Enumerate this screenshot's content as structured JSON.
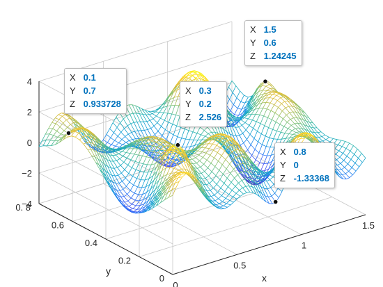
{
  "chart_data": {
    "type": "surface",
    "style": "mesh",
    "colormap": "parula",
    "x": {
      "label": "x",
      "range": [
        0,
        1.5
      ],
      "ticks": [
        "0",
        "0.5",
        "1",
        "1.5"
      ]
    },
    "y": {
      "label": "y",
      "range": [
        0,
        0.8
      ],
      "ticks": [
        "0",
        "0.2",
        "0.4",
        "0.6",
        "0. 8"
      ]
    },
    "z": {
      "label": "",
      "range": [
        -4,
        4
      ],
      "ticks": [
        "−4",
        "−2",
        "0",
        "2",
        "4"
      ]
    },
    "grid": true,
    "datatips": [
      {
        "X": "0.1",
        "Y": "0.7",
        "Z": "0.933728"
      },
      {
        "X": "0.3",
        "Y": "0.2",
        "Z": "2.526"
      },
      {
        "X": "1.5",
        "Y": "0.6",
        "Z": "1.24245"
      },
      {
        "X": "0.8",
        "Y": "0",
        "Z": "-1.33368"
      }
    ]
  }
}
